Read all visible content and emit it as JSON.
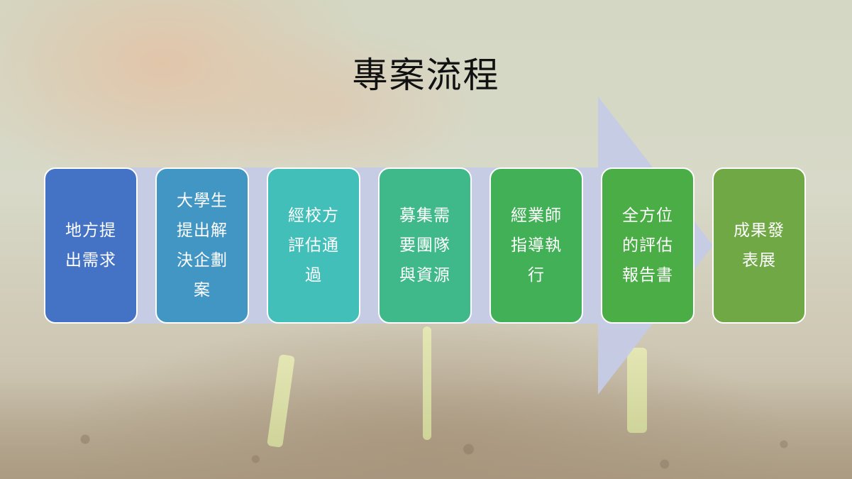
{
  "slide": {
    "title": "專案流程"
  },
  "steps": [
    {
      "label": "地方提出需求",
      "color": "#4472c4"
    },
    {
      "label": "大學生提出解決企劃案",
      "color": "#4196c3"
    },
    {
      "label": "經校方評估通過",
      "color": "#41bfb8"
    },
    {
      "label": "募集需要團隊與資源",
      "color": "#40b98a"
    },
    {
      "label": "經業師指導執行",
      "color": "#41b056"
    },
    {
      "label": "全方位的評估報告書",
      "color": "#4aad45"
    },
    {
      "label": "成果發表展",
      "color": "#6fa844"
    }
  ],
  "colors": {
    "arrow": "#c5cbe6"
  }
}
